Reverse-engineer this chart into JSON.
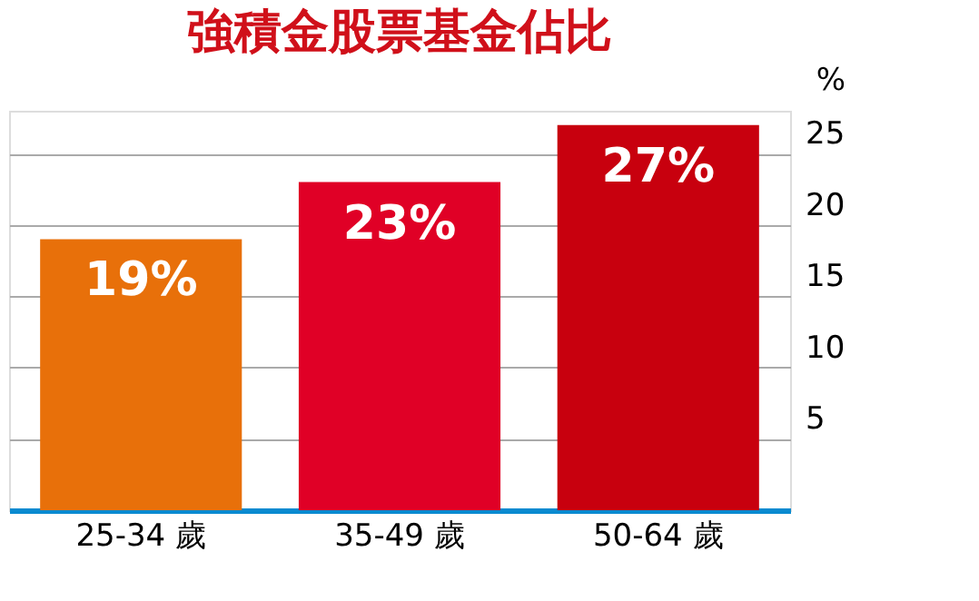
{
  "chart_data": {
    "type": "bar",
    "title": "強積金股票基金佔比",
    "ylabel": "%",
    "categories": [
      "25-34 歲",
      "35-49 歲",
      "50-64 歲"
    ],
    "values": [
      19,
      23,
      27
    ],
    "colors": [
      "#e8700a",
      "#e00026",
      "#c8000e"
    ],
    "value_labels": [
      "19%",
      "23%",
      "27%"
    ],
    "ylim": [
      0,
      28
    ],
    "yticks": [
      5,
      10,
      15,
      20,
      25
    ],
    "grid": "y"
  }
}
